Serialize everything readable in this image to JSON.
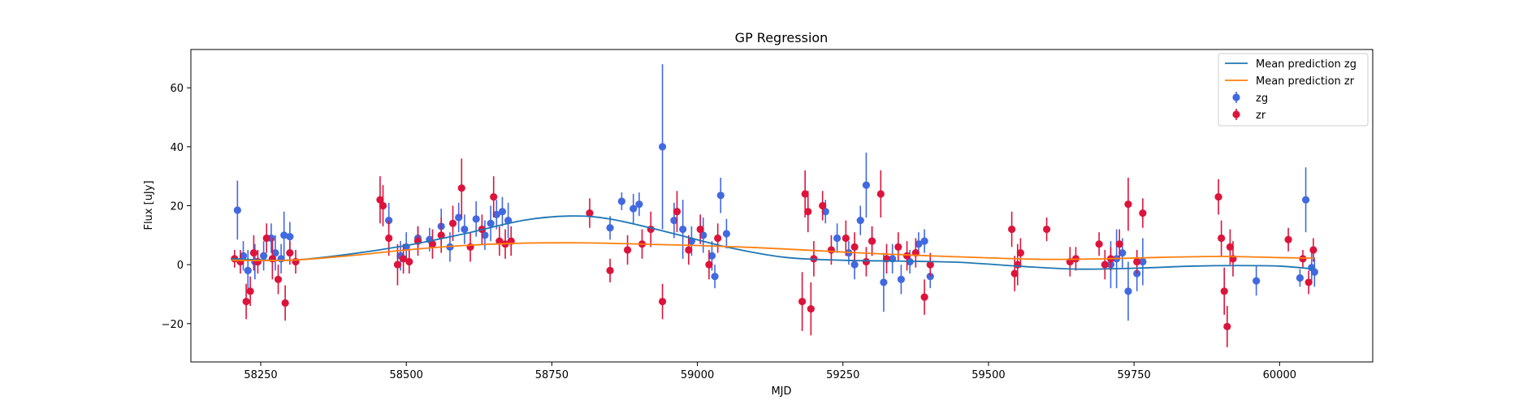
{
  "chart_data": {
    "type": "scatter",
    "title": "GP Regression",
    "xlabel": "MJD",
    "ylabel": "Flux [uJy]",
    "xlim": [
      58130,
      60160
    ],
    "ylim": [
      -33,
      73
    ],
    "x_ticks": [
      58250,
      58500,
      58750,
      59000,
      59250,
      59500,
      59750,
      60000
    ],
    "y_ticks": [
      -20,
      0,
      20,
      40,
      60
    ],
    "grid": false,
    "legend_position": "top-right",
    "colors": {
      "zg": "#4169e1",
      "zr": "#dc143c",
      "mean_zg": "#1f77b4",
      "mean_zr": "#ff7f0e"
    },
    "lines": [
      {
        "name": "Mean prediction zg",
        "x": [
          58200,
          58300,
          58400,
          58500,
          58600,
          58700,
          58780,
          58850,
          58950,
          59050,
          59150,
          59250,
          59350,
          59450,
          59550,
          59650,
          59750,
          59850,
          59930,
          60000,
          60060
        ],
        "y": [
          2,
          1.5,
          3.5,
          6.5,
          10.5,
          15,
          16.5,
          15.5,
          11,
          6,
          2.5,
          1.5,
          1.2,
          0.8,
          -0.5,
          -1.5,
          -1.2,
          -0.5,
          -0.3,
          -0.5,
          -1.5
        ]
      },
      {
        "name": "Mean prediction zr",
        "x": [
          58200,
          58300,
          58400,
          58500,
          58600,
          58700,
          58800,
          58900,
          59000,
          59100,
          59200,
          59300,
          59400,
          59500,
          59600,
          59700,
          59800,
          59900,
          60000,
          60060
        ],
        "y": [
          1.5,
          1.5,
          3,
          5,
          6.5,
          7.3,
          7.4,
          7,
          6.5,
          5.8,
          4.8,
          3.8,
          3,
          2.3,
          1.8,
          2,
          2.5,
          2.8,
          2.4,
          2.2
        ]
      }
    ],
    "series": [
      {
        "name": "zg",
        "x": [
          58210,
          58220,
          58228,
          58240,
          58255,
          58268,
          58275,
          58285,
          58290,
          58300,
          58470,
          58490,
          58500,
          58520,
          58540,
          58560,
          58575,
          58590,
          58600,
          58620,
          58635,
          58645,
          58655,
          58665,
          58675,
          58850,
          58870,
          58890,
          58900,
          58940,
          58960,
          58975,
          58990,
          59010,
          59025,
          59030,
          59040,
          59050,
          59220,
          59240,
          59260,
          59270,
          59280,
          59290,
          59300,
          59320,
          59335,
          59350,
          59365,
          59380,
          59390,
          59400,
          59960,
          60035,
          60045,
          60055,
          60060,
          59710,
          59720,
          59730,
          59740,
          59755,
          59765
        ],
        "y": [
          18.5,
          3,
          -2,
          1,
          3,
          9,
          4,
          2,
          10,
          9.5,
          15,
          3,
          6,
          9,
          8.5,
          13,
          6,
          16,
          12,
          15.5,
          10,
          14,
          17,
          18,
          15,
          12.5,
          21.5,
          19,
          20.5,
          40,
          15,
          12,
          8,
          10,
          3,
          -4,
          23.5,
          10.5,
          18,
          9,
          4,
          0,
          15,
          27,
          8,
          -6,
          2,
          -5,
          1,
          7,
          8,
          -4,
          -5.5,
          -4.5,
          22,
          -1,
          -2.5,
          0,
          2,
          4,
          -9,
          -3,
          1
        ],
        "err": [
          10,
          5,
          7,
          6,
          5,
          5,
          6,
          5,
          8,
          5,
          6,
          5,
          5,
          4,
          4,
          6,
          5,
          5,
          5,
          6,
          5,
          6,
          5,
          5,
          6,
          4,
          3,
          5,
          4,
          28,
          6,
          10,
          5,
          6,
          5,
          4,
          6,
          5,
          4,
          5,
          4,
          5,
          5,
          11,
          5,
          10,
          5,
          5,
          4,
          4,
          4,
          4,
          5,
          3,
          11,
          5,
          5,
          8,
          10,
          5,
          10,
          6,
          8
        ]
      },
      {
        "name": "zr",
        "x": [
          58205,
          58215,
          58225,
          58232,
          58238,
          58245,
          58260,
          58270,
          58280,
          58292,
          58300,
          58310,
          58455,
          58460,
          58470,
          58485,
          58495,
          58505,
          58520,
          58545,
          58560,
          58580,
          58595,
          58610,
          58630,
          58650,
          58660,
          58670,
          58680,
          58815,
          58850,
          58880,
          58905,
          58920,
          58940,
          58965,
          58985,
          59005,
          59020,
          59035,
          59180,
          59185,
          59190,
          59195,
          59200,
          59215,
          59230,
          59255,
          59270,
          59290,
          59300,
          59315,
          59325,
          59345,
          59360,
          59375,
          59390,
          59400,
          59540,
          59545,
          59550,
          59555,
          59600,
          59640,
          59650,
          59690,
          59700,
          59710,
          59725,
          59740,
          59755,
          59765,
          59895,
          59900,
          59905,
          59910,
          59915,
          59920,
          60015,
          60040,
          60050,
          60058
        ],
        "y": [
          2,
          1,
          -12.5,
          -9,
          4,
          1,
          9,
          2,
          -5,
          -13,
          4,
          1,
          22,
          20,
          9,
          0,
          2,
          1,
          8,
          7,
          10,
          14,
          26,
          6,
          12,
          23,
          8,
          7,
          8,
          17.5,
          -2,
          5,
          7,
          12,
          -12.5,
          18,
          5,
          12,
          0,
          9,
          -12.5,
          24,
          18,
          -15,
          2,
          20,
          5,
          9,
          6,
          1,
          8,
          24,
          2,
          6,
          3,
          4,
          -11,
          0,
          12,
          -3,
          0,
          4,
          12,
          1,
          2,
          7,
          0,
          2,
          7,
          20.5,
          1,
          17.5,
          23,
          9,
          -9,
          -21,
          6,
          2,
          8.5,
          2,
          -6,
          5
        ],
        "err": [
          3,
          4,
          6,
          5,
          6,
          4,
          5,
          7,
          5,
          6,
          4,
          4,
          8,
          7,
          6,
          7,
          5,
          4,
          5,
          5,
          6,
          6,
          10,
          5,
          5,
          7,
          5,
          5,
          5,
          5,
          4,
          5,
          5,
          6,
          6,
          7,
          5,
          5,
          5,
          5,
          10,
          8,
          7,
          9,
          6,
          5,
          5,
          6,
          5,
          5,
          5,
          8,
          5,
          5,
          5,
          5,
          6,
          4,
          6,
          6,
          7,
          5,
          4,
          5,
          4,
          4,
          5,
          4,
          5,
          9,
          4,
          5,
          6,
          6,
          8,
          7,
          6,
          6,
          4,
          3,
          4,
          4
        ]
      }
    ],
    "legend": [
      {
        "label": "Mean prediction zg",
        "kind": "line",
        "color": "#1f77b4"
      },
      {
        "label": "Mean prediction zr",
        "kind": "line",
        "color": "#ff7f0e"
      },
      {
        "label": "zg",
        "kind": "errorbar",
        "color": "#4169e1"
      },
      {
        "label": "zr",
        "kind": "errorbar",
        "color": "#dc143c"
      }
    ]
  }
}
